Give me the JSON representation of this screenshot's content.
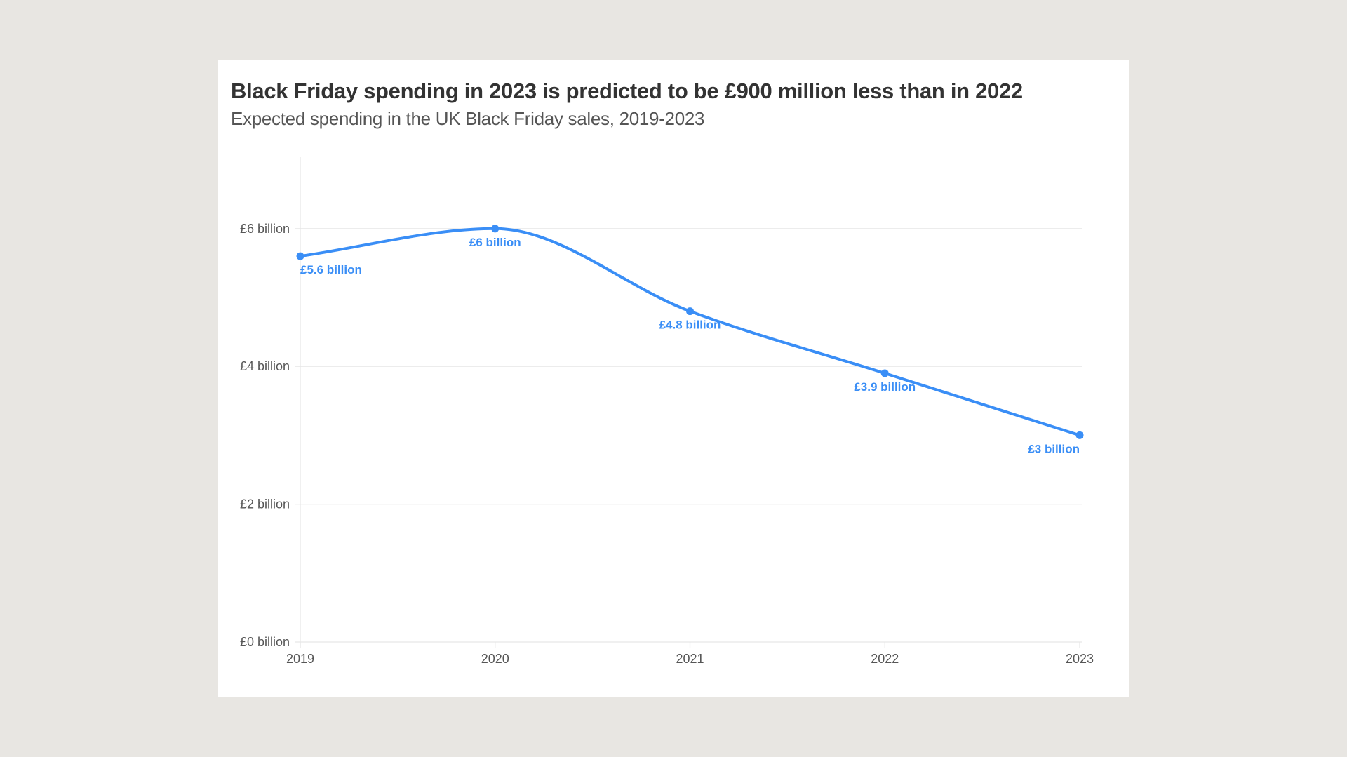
{
  "chart_data": {
    "type": "line",
    "title": "Black Friday spending in 2023 is predicted to be £900 million less than in 2022",
    "subtitle": "Expected spending in the UK Black Friday sales, 2019-2023",
    "xlabel": "",
    "ylabel": "",
    "categories": [
      "2019",
      "2020",
      "2021",
      "2022",
      "2023"
    ],
    "series": [
      {
        "name": "Expected spending",
        "values": [
          5.6,
          6.0,
          4.8,
          3.9,
          3.0
        ],
        "data_labels": [
          "£5.6 billion",
          "£6 billion",
          "£4.8 billion",
          "£3.9 billion",
          "£3 billion"
        ],
        "color": "#3a8ef6"
      }
    ],
    "ylim": [
      0,
      7
    ],
    "yticks": [
      0,
      2,
      4,
      6
    ],
    "ytick_labels": [
      "£0 billion",
      "£2 billion",
      "£4 billion",
      "£6 billion"
    ],
    "xtick_labels": [
      "2019",
      "2020",
      "2021",
      "2022",
      "2023"
    ],
    "grid": true,
    "legend": "none"
  },
  "colors": {
    "background": "#e8e6e2",
    "card": "#ffffff",
    "title": "#333333",
    "accent": "#3a8ef6"
  }
}
